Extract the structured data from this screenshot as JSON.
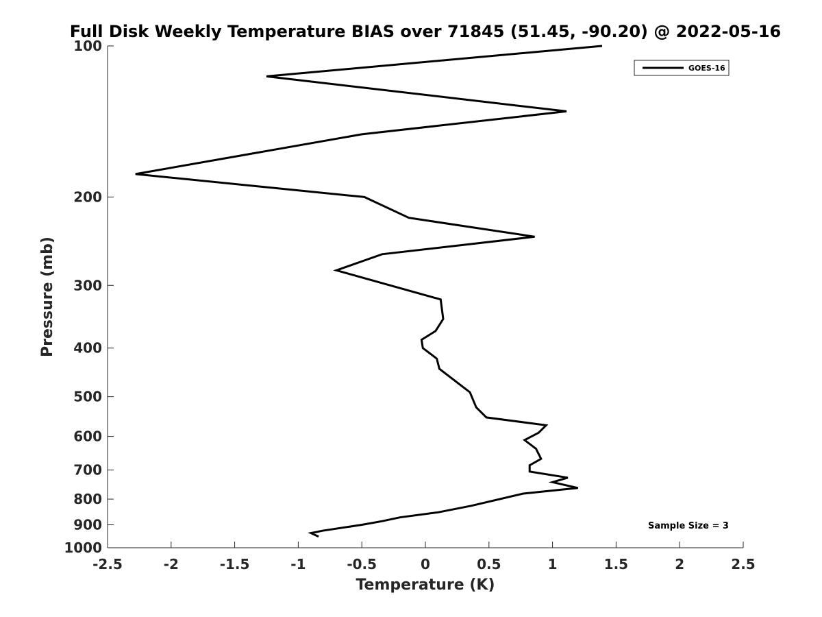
{
  "chart_data": {
    "type": "line",
    "title": "Full Disk Weekly Temperature BIAS over 71845 (51.45, -90.20) @ 2022-05-16",
    "xlabel": "Temperature (K)",
    "ylabel": "Pressure (mb)",
    "xlim": [
      -2.5,
      2.5
    ],
    "ylim": [
      1000,
      100
    ],
    "y_scale": "log",
    "y_reversed": true,
    "x_ticks": [
      -2.5,
      -2,
      -1.5,
      -1,
      -0.5,
      0,
      0.5,
      1,
      1.5,
      2,
      2.5
    ],
    "x_tick_labels": [
      "-2.5",
      "-2",
      "-1.5",
      "-1",
      "-0.5",
      "0",
      "0.5",
      "1",
      "1.5",
      "2",
      "2.5"
    ],
    "y_ticks": [
      100,
      200,
      300,
      400,
      500,
      600,
      700,
      800,
      900,
      1000
    ],
    "y_tick_labels": [
      "100",
      "200",
      "300",
      "400",
      "500",
      "600",
      "700",
      "800",
      "900",
      "1000"
    ],
    "grid": false,
    "legend_position": "top-right",
    "annotation": "Sample Size = 3",
    "series": [
      {
        "name": "GOES-16",
        "color": "#000000",
        "points": [
          {
            "x": 1.39,
            "p": 100
          },
          {
            "x": -1.25,
            "p": 115
          },
          {
            "x": 1.11,
            "p": 135
          },
          {
            "x": -0.5,
            "p": 150
          },
          {
            "x": -2.28,
            "p": 180
          },
          {
            "x": -0.48,
            "p": 200
          },
          {
            "x": -0.13,
            "p": 220
          },
          {
            "x": 0.86,
            "p": 240
          },
          {
            "x": -0.34,
            "p": 260
          },
          {
            "x": -0.7,
            "p": 280
          },
          {
            "x": 0.12,
            "p": 320
          },
          {
            "x": 0.14,
            "p": 350
          },
          {
            "x": 0.08,
            "p": 370
          },
          {
            "x": -0.03,
            "p": 385
          },
          {
            "x": -0.02,
            "p": 400
          },
          {
            "x": 0.09,
            "p": 420
          },
          {
            "x": 0.11,
            "p": 440
          },
          {
            "x": 0.35,
            "p": 490
          },
          {
            "x": 0.4,
            "p": 525
          },
          {
            "x": 0.48,
            "p": 550
          },
          {
            "x": 0.95,
            "p": 570
          },
          {
            "x": 0.89,
            "p": 590
          },
          {
            "x": 0.78,
            "p": 610
          },
          {
            "x": 0.87,
            "p": 635
          },
          {
            "x": 0.91,
            "p": 665
          },
          {
            "x": 0.82,
            "p": 685
          },
          {
            "x": 0.82,
            "p": 705
          },
          {
            "x": 1.12,
            "p": 725
          },
          {
            "x": 1.0,
            "p": 740
          },
          {
            "x": 1.2,
            "p": 760
          },
          {
            "x": 0.77,
            "p": 780
          },
          {
            "x": 0.36,
            "p": 825
          },
          {
            "x": 0.1,
            "p": 850
          },
          {
            "x": -0.2,
            "p": 870
          },
          {
            "x": -0.34,
            "p": 885
          },
          {
            "x": -0.5,
            "p": 900
          },
          {
            "x": -0.81,
            "p": 925
          },
          {
            "x": -0.9,
            "p": 935
          },
          {
            "x": -0.84,
            "p": 950
          }
        ]
      }
    ]
  }
}
